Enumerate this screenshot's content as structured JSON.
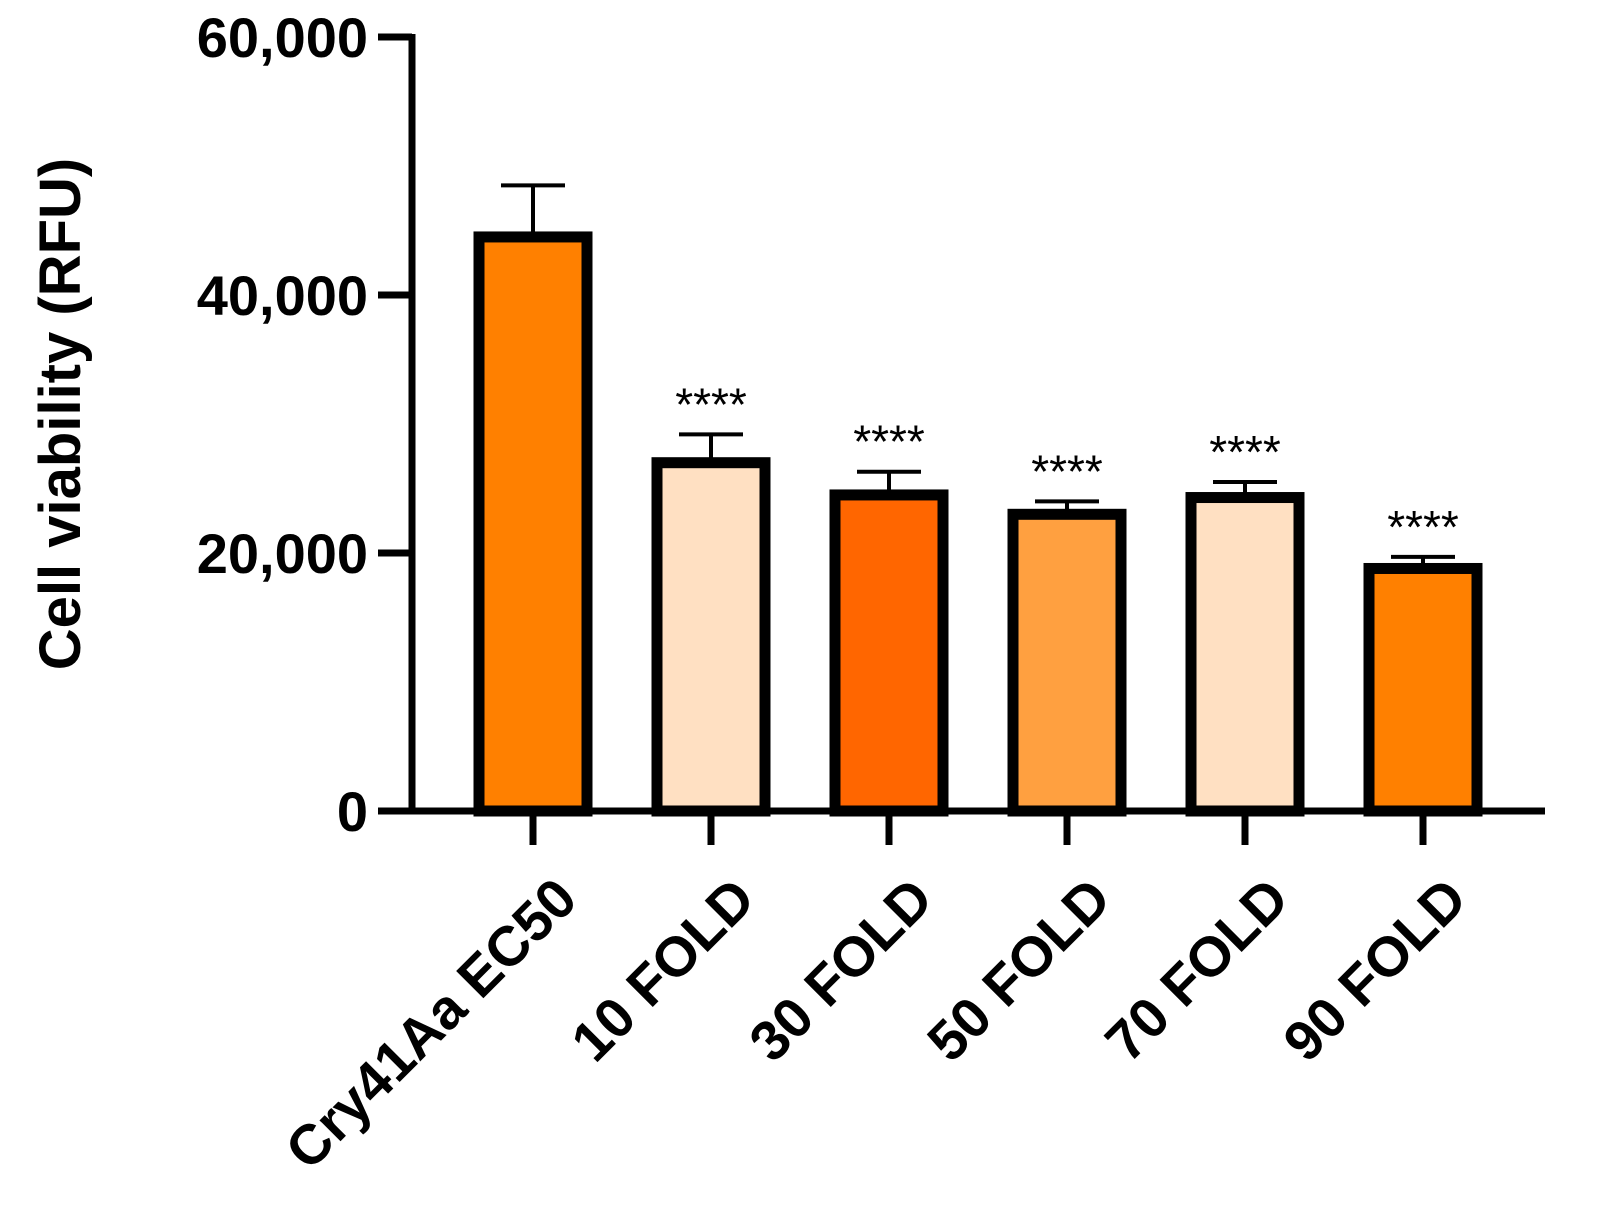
{
  "chart_data": {
    "type": "bar",
    "ylabel": "Cell viability (RFU)",
    "ylim": [
      0,
      60000
    ],
    "yticks": [
      0,
      20000,
      40000,
      60000
    ],
    "ytick_labels": [
      "0",
      "20,000",
      "40,000",
      "60,000"
    ],
    "categories": [
      "Cry41Aa EC50",
      "10 FOLD",
      "30 FOLD",
      "50 FOLD",
      "70 FOLD",
      "90 FOLD"
    ],
    "values": [
      44500,
      27000,
      24500,
      23000,
      24300,
      18800
    ],
    "error_upper": [
      48500,
      29200,
      26300,
      24000,
      25500,
      19700
    ],
    "significance": [
      "",
      "****",
      "****",
      "****",
      "****",
      "****"
    ],
    "bar_colors": [
      "#ff8000",
      "#ffe0c2",
      "#ff6600",
      "#ffa040",
      "#ffe0c2",
      "#ff8000"
    ],
    "grid": false,
    "legend": "none"
  }
}
